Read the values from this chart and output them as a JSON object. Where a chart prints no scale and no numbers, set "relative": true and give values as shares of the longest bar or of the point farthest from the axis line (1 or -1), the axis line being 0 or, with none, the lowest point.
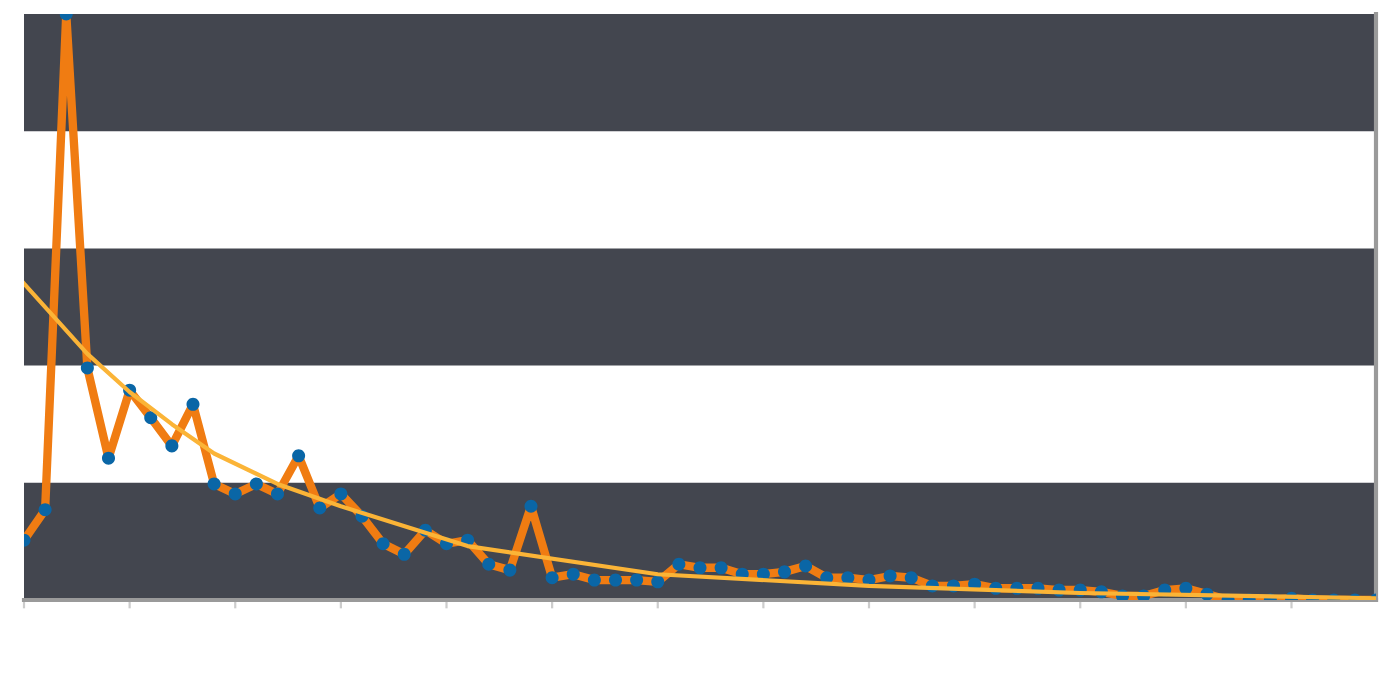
{
  "chart_data": {
    "type": "line",
    "relative": true,
    "categories": [
      null,
      null,
      null,
      null,
      null,
      null,
      null,
      null,
      null,
      null,
      null,
      null,
      null,
      null,
      null,
      null,
      null,
      null,
      null,
      null,
      null,
      null,
      null,
      null,
      null,
      null,
      null,
      null,
      null,
      null,
      null,
      null,
      null,
      null,
      null,
      null,
      null,
      null,
      null,
      null,
      null,
      null,
      null,
      null,
      null,
      null,
      null,
      null,
      null,
      null,
      null,
      null,
      null,
      null,
      null,
      null,
      null,
      null,
      null,
      null,
      null,
      null,
      null,
      null,
      null
    ],
    "series": [
      {
        "color": "#f07c12",
        "marker": "circle",
        "colors": [
          "#0a66a6",
          "#0a66a6",
          "#0a66a6",
          "#0a66a6",
          "#0a66a6",
          "#0a66a6",
          "#0a66a6",
          "#0a66a6",
          "#0a66a6",
          "#0a66a6",
          "#0a66a6",
          "#0a66a6",
          "#0a66a6",
          "#0a66a6",
          "#0a66a6",
          "#0a66a6",
          "#0a66a6",
          "#0a66a6",
          "#0a66a6",
          "#0a66a6",
          "#0a66a6",
          "#0a66a6",
          "#0a66a6",
          "#0a66a6",
          "#0a66a6",
          "#0a66a6",
          "#0a66a6",
          "#0a66a6",
          "#0a66a6",
          "#0a66a6",
          "#0a66a6",
          "#0a66a6",
          "#0a66a6",
          "#0a66a6",
          "#0a66a6",
          "#0a66a6",
          "#0a66a6",
          "#0a66a6",
          "#0a66a6",
          "#0a66a6",
          "#0a66a6",
          "#0a66a6",
          "#0a66a6",
          "#0a66a6",
          "#0a66a6",
          "#0a66a6",
          "#0a66a6",
          "#0a66a6",
          "#0a66a6",
          "#0a66a6",
          "#0a66a6",
          "#0a66a6",
          "#0a66a6",
          "#0a66a6",
          "#0a66a6",
          "#0a66a6",
          "#0a66a6",
          "#0a66a6",
          "#0a66a6",
          "#0a66a6",
          "#0a66a6",
          "#0a66a6",
          "#0a66a6",
          "#0a66a6",
          "#0a66a6"
        ],
        "values": [
          0.102,
          0.154,
          1,
          0.396,
          0.242,
          0.358,
          0.311,
          0.263,
          0.334,
          0.198,
          0.181,
          0.198,
          0.181,
          0.246,
          0.157,
          0.181,
          0.143,
          0.096,
          0.078,
          0.119,
          0.096,
          0.102,
          0.061,
          0.051,
          0.16,
          0.038,
          0.044,
          0.034,
          0.034,
          0.034,
          0.031,
          0.061,
          0.055,
          0.055,
          0.044,
          0.044,
          0.048,
          0.058,
          0.038,
          0.038,
          0.034,
          0.041,
          0.038,
          0.024,
          0.024,
          0.027,
          0.02,
          0.02,
          0.02,
          0.017,
          0.017,
          0.014,
          0.007,
          0.007,
          0.017,
          0.02,
          0.01,
          0,
          0,
          0,
          0.003,
          0,
          0,
          0,
          0
        ]
      },
      {
        "color": "#fbb437",
        "marker": "none",
        "values": [
          0.54,
          null,
          null,
          0.42,
          null,
          0.355,
          null,
          0.3,
          null,
          0.25,
          null,
          null,
          0.198,
          null,
          null,
          0.16,
          null,
          null,
          null,
          null,
          null,
          0.092,
          null,
          null,
          null,
          null,
          null,
          null,
          null,
          null,
          0.044,
          null,
          null,
          null,
          null,
          null,
          null,
          null,
          null,
          null,
          0.024,
          null,
          null,
          null,
          null,
          null,
          null,
          null,
          null,
          null,
          0.012,
          null,
          null,
          null,
          null,
          null,
          null,
          null,
          null,
          null,
          null,
          null,
          null,
          null,
          0.003
        ]
      }
    ]
  }
}
